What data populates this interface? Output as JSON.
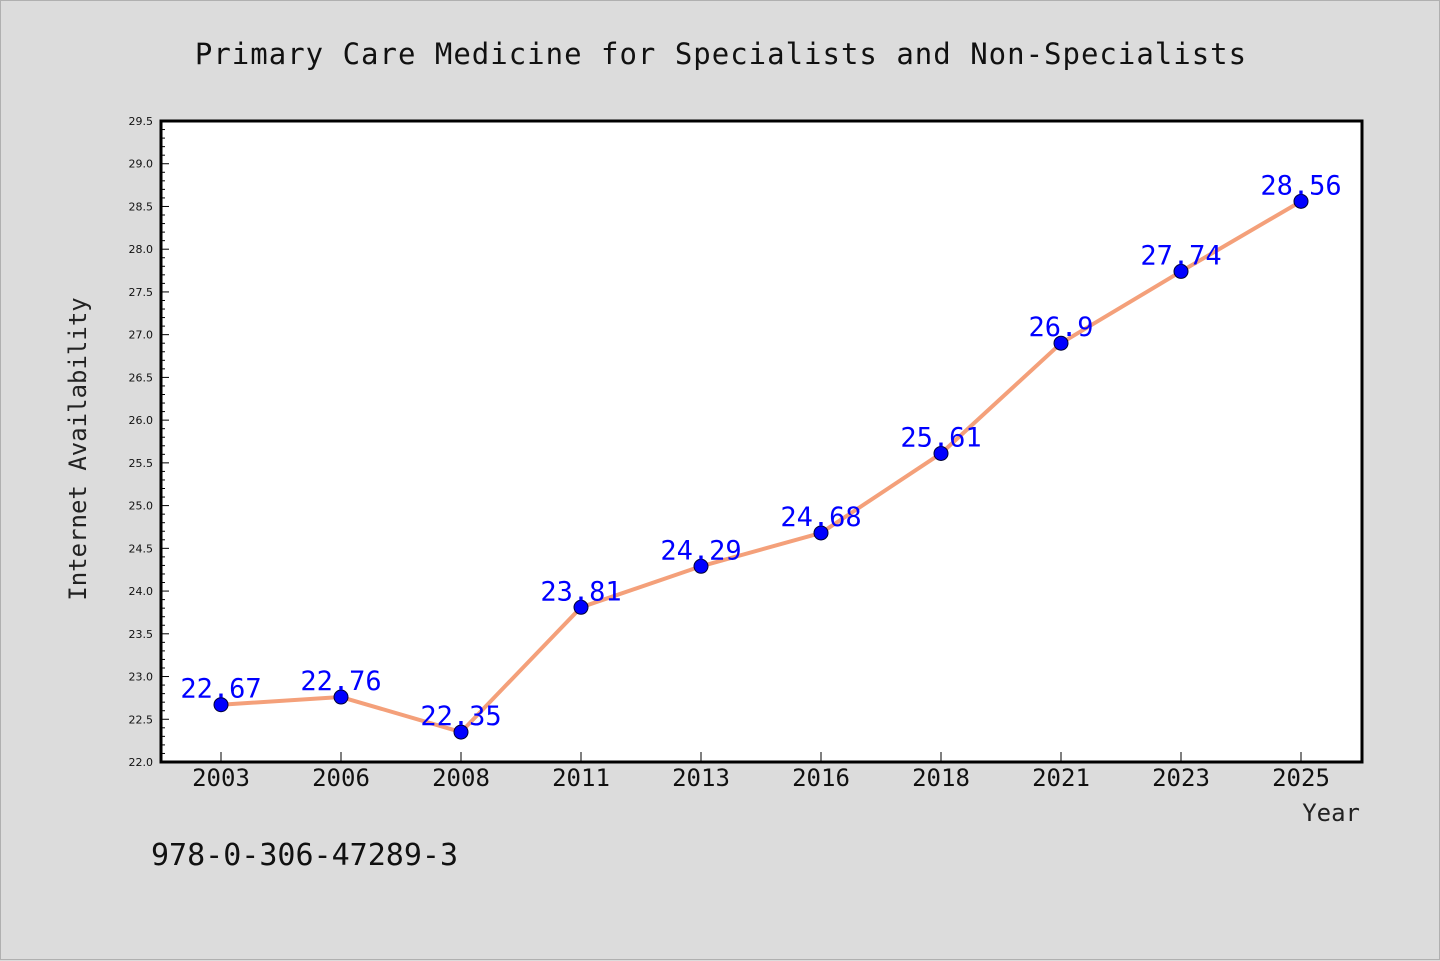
{
  "chart_data": {
    "type": "line",
    "title": "Primary Care Medicine for Specialists and Non-Specialists",
    "xlabel": "Year",
    "ylabel": "Internet Availability",
    "categories": [
      "2003",
      "2006",
      "2008",
      "2011",
      "2013",
      "2016",
      "2018",
      "2021",
      "2023",
      "2025"
    ],
    "series": [
      {
        "values": [
          22.67,
          22.76,
          22.35,
          23.81,
          24.29,
          24.68,
          25.61,
          26.9,
          27.74,
          28.56
        ],
        "labels": [
          "22.67",
          "22.76",
          "22.35",
          "23.81",
          "24.29",
          "24.68",
          "25.61",
          "26.9",
          "27.74",
          "28.56"
        ]
      }
    ],
    "ylim": [
      22.0,
      29.5
    ],
    "yticks": [
      "22.0",
      "22.5",
      "23.0",
      "23.5",
      "24.0",
      "24.5",
      "25.0",
      "25.5",
      "26.0",
      "26.5",
      "27.0",
      "27.5",
      "28.0",
      "28.5",
      "29.0",
      "29.5"
    ],
    "grid": false,
    "line_color": "#f4a07a",
    "marker_color": "#0000ff",
    "label_color": "#0000ff"
  },
  "footer": {
    "text": "978-0-306-47289-3"
  }
}
